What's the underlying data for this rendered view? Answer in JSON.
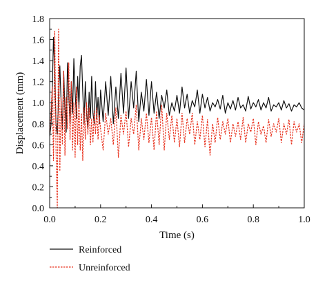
{
  "chart_data": {
    "type": "line",
    "xlabel": "Time (s)",
    "ylabel": "Displacement (mm)",
    "xlim": [
      0,
      1.0
    ],
    "ylim": [
      0,
      1.8
    ],
    "x_ticks": [
      "0.0",
      "0.2",
      "0.4",
      "0.6",
      "0.8",
      "1.0"
    ],
    "y_ticks": [
      "0.0",
      "0.2",
      "0.4",
      "0.6",
      "0.8",
      "1.0",
      "1.2",
      "1.4",
      "1.6",
      "1.8"
    ],
    "grid": false,
    "legend_position": "bottom-left",
    "series": [
      {
        "name": "Reinforced",
        "color": "#111111",
        "style": "solid",
        "x": [
          0.0,
          0.005,
          0.01,
          0.015,
          0.02,
          0.025,
          0.03,
          0.035,
          0.04,
          0.045,
          0.05,
          0.055,
          0.06,
          0.065,
          0.07,
          0.075,
          0.08,
          0.085,
          0.09,
          0.095,
          0.1,
          0.105,
          0.11,
          0.115,
          0.12,
          0.125,
          0.13,
          0.135,
          0.14,
          0.145,
          0.15,
          0.155,
          0.16,
          0.165,
          0.17,
          0.175,
          0.18,
          0.185,
          0.19,
          0.195,
          0.2,
          0.21,
          0.22,
          0.23,
          0.24,
          0.25,
          0.26,
          0.27,
          0.28,
          0.29,
          0.3,
          0.31,
          0.32,
          0.33,
          0.34,
          0.35,
          0.36,
          0.37,
          0.38,
          0.39,
          0.4,
          0.41,
          0.42,
          0.43,
          0.44,
          0.45,
          0.46,
          0.47,
          0.48,
          0.49,
          0.5,
          0.51,
          0.52,
          0.53,
          0.54,
          0.55,
          0.56,
          0.57,
          0.58,
          0.59,
          0.6,
          0.61,
          0.62,
          0.63,
          0.64,
          0.65,
          0.66,
          0.67,
          0.68,
          0.69,
          0.7,
          0.71,
          0.72,
          0.73,
          0.74,
          0.75,
          0.76,
          0.77,
          0.78,
          0.79,
          0.8,
          0.81,
          0.82,
          0.83,
          0.84,
          0.85,
          0.86,
          0.87,
          0.88,
          0.89,
          0.9,
          0.91,
          0.92,
          0.93,
          0.94,
          0.95,
          0.96,
          0.97,
          0.98,
          0.99,
          1.0
        ],
        "values": [
          0.68,
          0.78,
          1.1,
          1.62,
          1.3,
          0.8,
          0.7,
          1.05,
          1.35,
          1.0,
          0.75,
          1.3,
          0.95,
          0.72,
          1.38,
          1.1,
          0.8,
          1.2,
          0.9,
          1.42,
          1.1,
          0.85,
          1.25,
          0.95,
          1.35,
          1.45,
          1.1,
          0.8,
          1.2,
          0.9,
          0.75,
          1.1,
          0.85,
          1.25,
          0.9,
          0.8,
          1.2,
          0.85,
          1.05,
          0.8,
          1.12,
          0.82,
          1.2,
          0.88,
          1.25,
          0.8,
          1.15,
          0.85,
          1.28,
          0.9,
          1.33,
          0.85,
          1.2,
          0.95,
          1.3,
          0.82,
          1.1,
          0.92,
          1.22,
          0.88,
          1.2,
          0.9,
          1.1,
          0.85,
          1.07,
          0.95,
          1.12,
          0.88,
          1.0,
          0.92,
          1.07,
          0.9,
          1.15,
          0.95,
          1.08,
          0.9,
          1.02,
          0.96,
          1.12,
          0.9,
          1.08,
          0.95,
          1.05,
          0.92,
          1.0,
          0.96,
          1.03,
          0.94,
          1.07,
          0.9,
          1.0,
          0.94,
          1.02,
          0.93,
          1.05,
          0.95,
          0.98,
          0.92,
          1.06,
          0.94,
          1.0,
          0.96,
          1.03,
          0.93,
          1.0,
          0.95,
          1.05,
          0.92,
          0.98,
          0.96,
          1.0,
          0.93,
          1.02,
          0.95,
          0.99,
          0.92,
          0.98,
          0.96,
          1.0,
          0.95,
          0.93
        ]
      },
      {
        "name": "Unreinforced",
        "color": "#e8321e",
        "style": "dashed",
        "x": [
          0.0,
          0.005,
          0.01,
          0.015,
          0.02,
          0.025,
          0.03,
          0.035,
          0.04,
          0.045,
          0.05,
          0.055,
          0.06,
          0.065,
          0.07,
          0.075,
          0.08,
          0.085,
          0.09,
          0.095,
          0.1,
          0.105,
          0.11,
          0.115,
          0.12,
          0.125,
          0.13,
          0.135,
          0.14,
          0.145,
          0.15,
          0.155,
          0.16,
          0.165,
          0.17,
          0.175,
          0.18,
          0.185,
          0.19,
          0.195,
          0.2,
          0.21,
          0.22,
          0.23,
          0.24,
          0.25,
          0.26,
          0.27,
          0.28,
          0.29,
          0.3,
          0.31,
          0.32,
          0.33,
          0.34,
          0.35,
          0.36,
          0.37,
          0.38,
          0.39,
          0.4,
          0.41,
          0.42,
          0.43,
          0.44,
          0.45,
          0.46,
          0.47,
          0.48,
          0.49,
          0.5,
          0.51,
          0.52,
          0.53,
          0.54,
          0.55,
          0.56,
          0.57,
          0.58,
          0.59,
          0.6,
          0.61,
          0.62,
          0.63,
          0.64,
          0.65,
          0.66,
          0.67,
          0.68,
          0.69,
          0.7,
          0.71,
          0.72,
          0.73,
          0.74,
          0.75,
          0.76,
          0.77,
          0.78,
          0.79,
          0.8,
          0.81,
          0.82,
          0.83,
          0.84,
          0.85,
          0.86,
          0.87,
          0.88,
          0.89,
          0.9,
          0.91,
          0.92,
          0.93,
          0.94,
          0.95,
          0.96,
          0.97,
          0.98,
          0.99,
          1.0
        ],
        "values": [
          0.72,
          0.9,
          1.15,
          0.45,
          1.68,
          0.55,
          0.0,
          1.7,
          0.35,
          1.05,
          0.6,
          1.3,
          0.5,
          1.05,
          0.75,
          1.38,
          0.65,
          1.2,
          0.55,
          1.0,
          0.48,
          1.15,
          0.6,
          1.0,
          0.55,
          0.9,
          0.45,
          0.95,
          0.65,
          1.0,
          0.7,
          0.95,
          0.6,
          0.85,
          0.62,
          0.92,
          0.7,
          0.95,
          0.65,
          0.88,
          0.75,
          0.55,
          0.9,
          0.7,
          0.85,
          0.6,
          0.95,
          0.48,
          0.88,
          0.7,
          0.92,
          0.58,
          0.85,
          0.7,
          0.98,
          0.55,
          0.85,
          0.65,
          0.9,
          0.62,
          0.86,
          0.55,
          0.92,
          0.6,
          0.98,
          0.55,
          0.9,
          0.65,
          0.88,
          0.62,
          0.85,
          0.58,
          0.9,
          0.62,
          0.85,
          0.7,
          0.9,
          0.6,
          0.82,
          0.65,
          0.88,
          0.58,
          0.84,
          0.5,
          0.8,
          0.62,
          0.86,
          0.65,
          0.82,
          0.7,
          0.85,
          0.62,
          0.8,
          0.68,
          0.82,
          0.65,
          0.86,
          0.62,
          0.8,
          0.72,
          0.85,
          0.6,
          0.82,
          0.7,
          0.78,
          0.62,
          0.84,
          0.68,
          0.8,
          0.72,
          0.85,
          0.62,
          0.8,
          0.7,
          0.84,
          0.6,
          0.82,
          0.72,
          0.8,
          0.62,
          0.8
        ]
      }
    ]
  }
}
